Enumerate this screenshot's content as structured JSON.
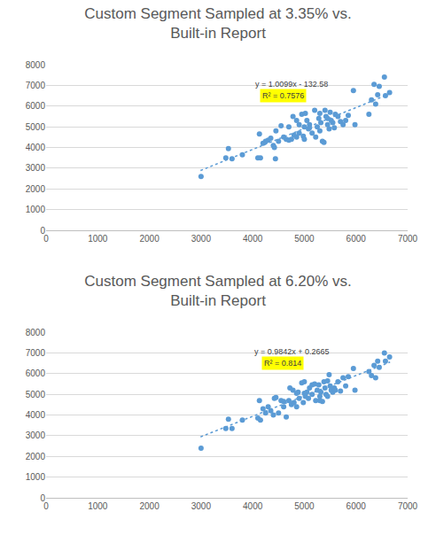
{
  "chart_data": [
    {
      "type": "scatter",
      "title": "Custom Segment Sampled at 3.35% vs. Built-in Report",
      "xlim": [
        0,
        7000
      ],
      "xticks": [
        0,
        1000,
        2000,
        3000,
        4000,
        5000,
        6000,
        7000
      ],
      "ylim": [
        0,
        8000
      ],
      "yticks": [
        0,
        1000,
        2000,
        3000,
        4000,
        5000,
        6000,
        7000,
        8000
      ],
      "grid": true,
      "series": [
        {
          "color": "#5b9bd5",
          "marker": "circle",
          "x": [
            3000,
            3480,
            3530,
            3600,
            3800,
            4100,
            4150,
            4130,
            4200,
            4250,
            4300,
            4350,
            4400,
            4420,
            4440,
            4450,
            4500,
            4600,
            4650,
            4700,
            4700,
            4750,
            4780,
            4800,
            4850,
            4900,
            4900,
            4950,
            4980,
            5000,
            5020,
            5050,
            5080,
            5100,
            5150,
            5200,
            5220,
            5250,
            5280,
            5300,
            5320,
            5350,
            5380,
            5400,
            5420,
            5450,
            5480,
            5500,
            5520,
            5550,
            5580,
            5600,
            5650,
            5700,
            5750,
            5800,
            5850,
            5950,
            5980,
            6250,
            6300,
            6350,
            6380,
            6420,
            6450,
            6550,
            6570,
            6650,
            4550,
            4850,
            5000,
            5100,
            5300,
            5450
          ],
          "values": [
            2600,
            3500,
            3950,
            3450,
            3650,
            3500,
            3500,
            4650,
            4200,
            4300,
            4350,
            4450,
            4100,
            4000,
            3450,
            4800,
            4300,
            4500,
            4400,
            5000,
            4350,
            4400,
            5500,
            4600,
            4500,
            5100,
            4700,
            5600,
            4550,
            4400,
            5650,
            5300,
            4900,
            5100,
            4700,
            5800,
            4500,
            5000,
            5400,
            4800,
            5200,
            4300,
            4250,
            5800,
            5500,
            5100,
            4900,
            5700,
            5300,
            5200,
            4950,
            5600,
            5500,
            5250,
            5100,
            5300,
            5550,
            6750,
            5100,
            5600,
            6300,
            7050,
            6100,
            6550,
            6950,
            7400,
            6500,
            6650,
            5050,
            5300,
            5000,
            4950,
            5650,
            5400
          ]
        },
        {
          "type": "line",
          "line_style": "dotted",
          "color": "#5b9bd5",
          "x": [
            2990,
            6660
          ],
          "values": [
            2887,
            6594
          ]
        }
      ],
      "annotations": [
        {
          "text": "y = 1.0099x - 132.58"
        },
        {
          "text": "R² = 0.7576",
          "color": "#ffff00"
        }
      ]
    },
    {
      "type": "scatter",
      "title": "Custom Segment Sampled at 6.20% vs. Built-in Report",
      "xlim": [
        0,
        7000
      ],
      "xticks": [
        0,
        1000,
        2000,
        3000,
        4000,
        5000,
        6000,
        7000
      ],
      "ylim": [
        0,
        8000
      ],
      "yticks": [
        0,
        1000,
        2000,
        3000,
        4000,
        5000,
        6000,
        7000,
        8000
      ],
      "grid": true,
      "series": [
        {
          "color": "#5b9bd5",
          "marker": "circle",
          "x": [
            3000,
            3480,
            3530,
            3600,
            3800,
            4100,
            4130,
            4150,
            4200,
            4250,
            4300,
            4350,
            4400,
            4420,
            4450,
            4500,
            4550,
            4600,
            4650,
            4700,
            4720,
            4750,
            4780,
            4800,
            4850,
            4880,
            4900,
            4950,
            4980,
            5000,
            5020,
            5050,
            5080,
            5100,
            5150,
            5200,
            5220,
            5250,
            5280,
            5300,
            5320,
            5350,
            5380,
            5400,
            5420,
            5450,
            5480,
            5500,
            5520,
            5550,
            5580,
            5600,
            5650,
            5700,
            5750,
            5800,
            5850,
            5950,
            5980,
            6250,
            6300,
            6350,
            6380,
            6420,
            6450,
            6550,
            6570,
            6650,
            4600,
            4850,
            5000,
            5150,
            5300,
            5450
          ],
          "values": [
            2400,
            3350,
            3800,
            3350,
            3750,
            3850,
            4700,
            3750,
            4300,
            4100,
            4400,
            4200,
            4000,
            4800,
            4850,
            4100,
            4700,
            4400,
            3900,
            4700,
            5300,
            4500,
            5200,
            4600,
            4400,
            5100,
            4800,
            5550,
            4600,
            5600,
            4900,
            5100,
            4800,
            5300,
            5000,
            5500,
            4700,
            5200,
            5450,
            4900,
            5100,
            4650,
            5600,
            5300,
            5000,
            4900,
            5950,
            5400,
            5200,
            5100,
            5300,
            5200,
            5600,
            5150,
            5800,
            5400,
            5850,
            6250,
            5200,
            6100,
            5900,
            6400,
            5800,
            6600,
            6300,
            7000,
            6600,
            6800,
            4650,
            5050,
            5050,
            5450,
            4700,
            5650
          ]
        },
        {
          "type": "line",
          "line_style": "dotted",
          "color": "#5b9bd5",
          "x": [
            2990,
            6660
          ],
          "values": [
            2943,
            6555
          ]
        }
      ],
      "annotations": [
        {
          "text": "y = 0.9842x + 0.2665"
        },
        {
          "text": "R² = 0.814",
          "color": "#ffff00"
        }
      ]
    }
  ]
}
